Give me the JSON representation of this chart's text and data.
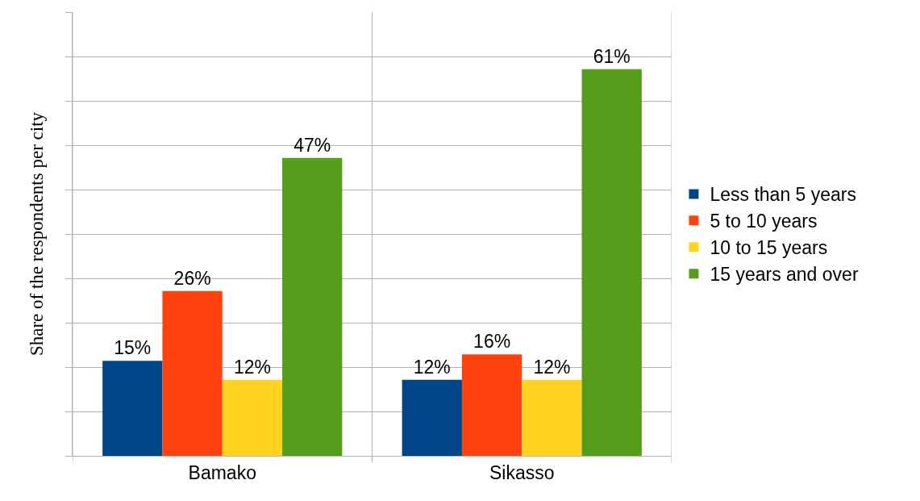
{
  "chart_data": {
    "type": "bar",
    "ylabel": "Share of the respondents per city",
    "categories": [
      "Bamako",
      "Sikasso"
    ],
    "series": [
      {
        "name": "Less than 5 years",
        "color": "#004586",
        "values": [
          15,
          12
        ],
        "value_labels": [
          "15%",
          "12%"
        ]
      },
      {
        "name": "5 to 10 years",
        "color": "#ff420e",
        "values": [
          26,
          16
        ],
        "value_labels": [
          "26%",
          "16%"
        ]
      },
      {
        "name": "10 to 15 years",
        "color": "#ffd320",
        "values": [
          12,
          12
        ],
        "value_labels": [
          "12%",
          "12%"
        ]
      },
      {
        "name": "15 years and over",
        "color": "#579d1c",
        "values": [
          47,
          61
        ],
        "value_labels": [
          "47%",
          "61%"
        ]
      }
    ],
    "relative": false,
    "ylim": [
      0,
      70
    ],
    "yticks": [
      {
        "value": 0,
        "label": null
      },
      {
        "value": 7,
        "label": null
      },
      {
        "value": 14,
        "label": null
      },
      {
        "value": 21,
        "label": null
      },
      {
        "value": 28,
        "label": null
      },
      {
        "value": 35,
        "label": null
      },
      {
        "value": 42,
        "label": null
      },
      {
        "value": 49,
        "label": null
      },
      {
        "value": 56,
        "label": null
      },
      {
        "value": 63,
        "label": null
      },
      {
        "value": 70,
        "label": null
      }
    ],
    "tick_labels": "x",
    "grid": true,
    "legend": "right"
  }
}
